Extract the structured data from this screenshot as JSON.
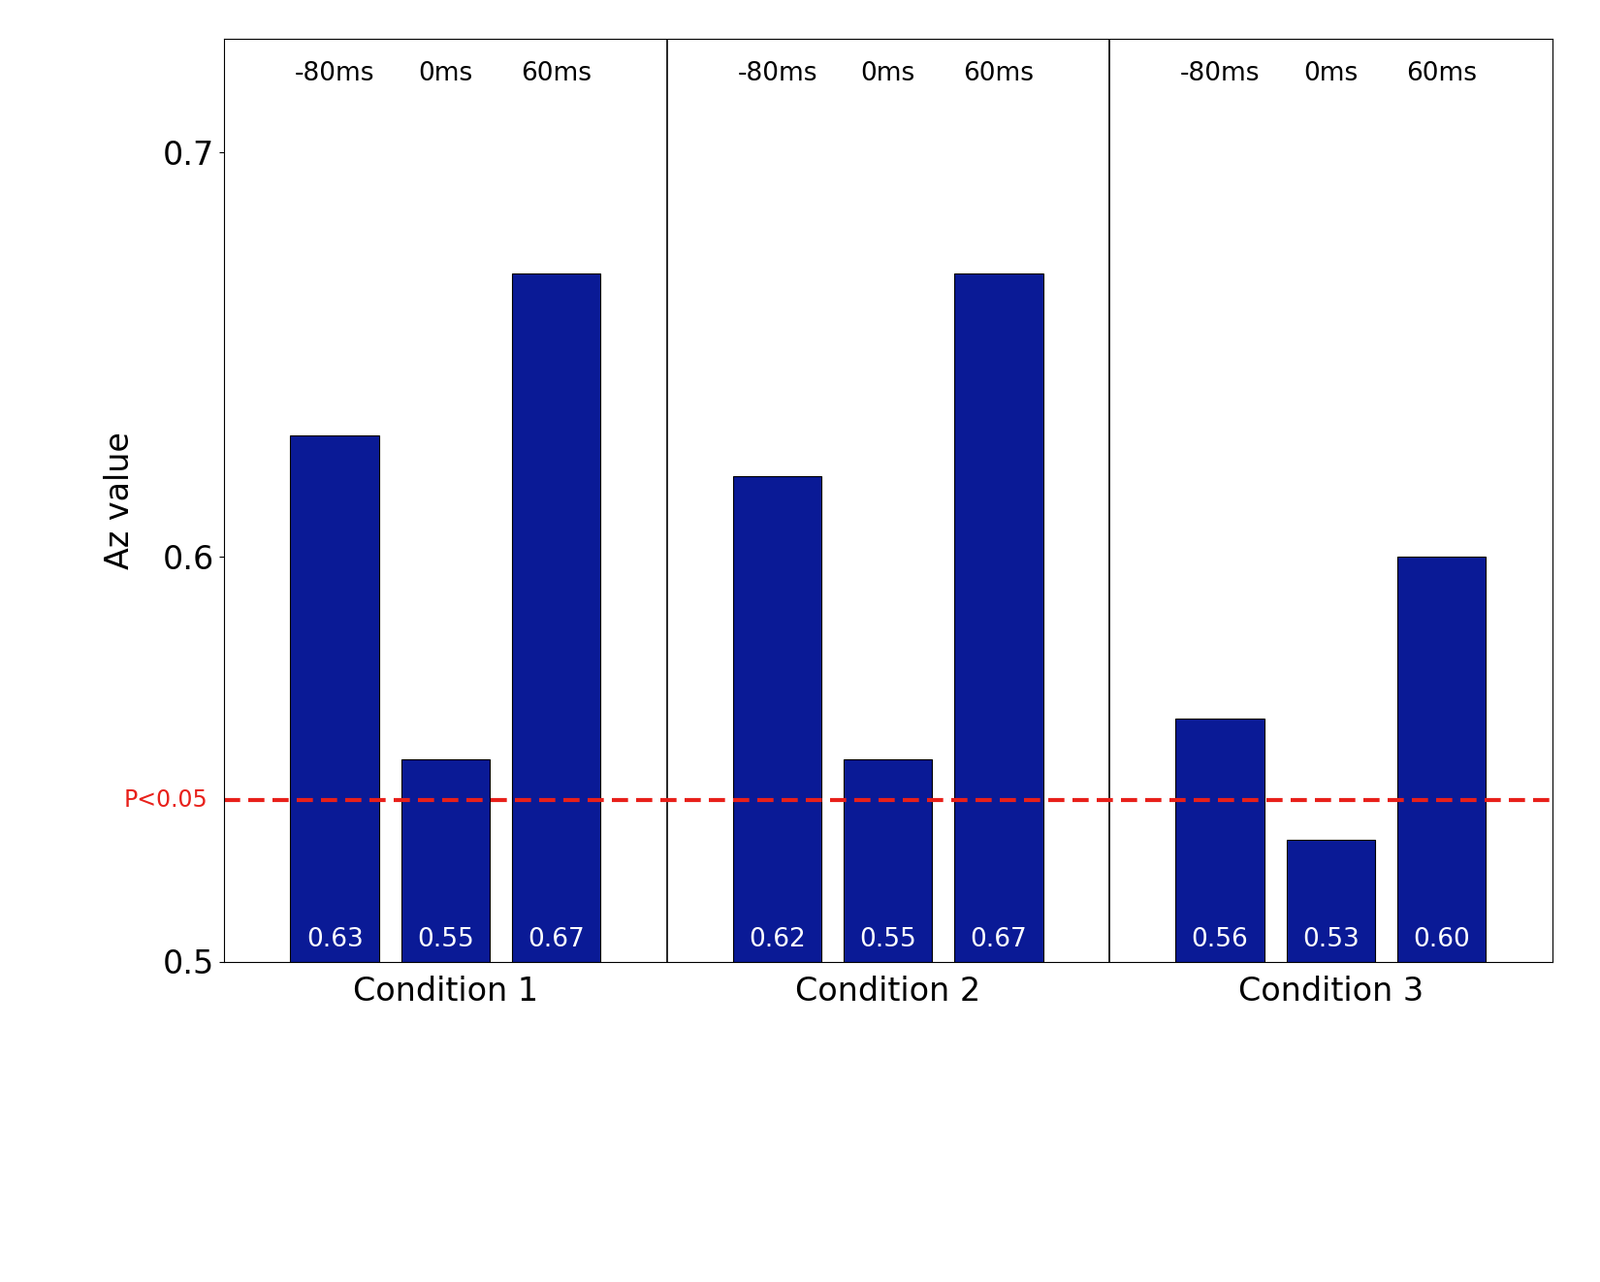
{
  "chart_data": {
    "type": "bar",
    "y_label": "Az value",
    "categories": [
      "-80ms",
      "0ms",
      "60ms"
    ],
    "groups": [
      {
        "name": "Condition 1",
        "values": [
          0.63,
          0.55,
          0.67
        ],
        "value_labels": [
          "0.63",
          "0.55",
          "0.67"
        ]
      },
      {
        "name": "Condition 2",
        "values": [
          0.62,
          0.55,
          0.67
        ],
        "value_labels": [
          "0.62",
          "0.55",
          "0.67"
        ]
      },
      {
        "name": "Condition 3",
        "values": [
          0.56,
          0.53,
          0.6
        ],
        "value_labels": [
          "0.56",
          "0.53",
          "0.60"
        ]
      }
    ],
    "threshold": {
      "value": 0.54,
      "label": "P<0.05",
      "color": "#e8201a",
      "line_style": "dashed"
    },
    "color": "#0a1a96",
    "data_labels": true,
    "ylim": [
      0.5,
      0.728
    ],
    "yticks": [
      0.5,
      0.6,
      0.7
    ],
    "grid": false
  }
}
